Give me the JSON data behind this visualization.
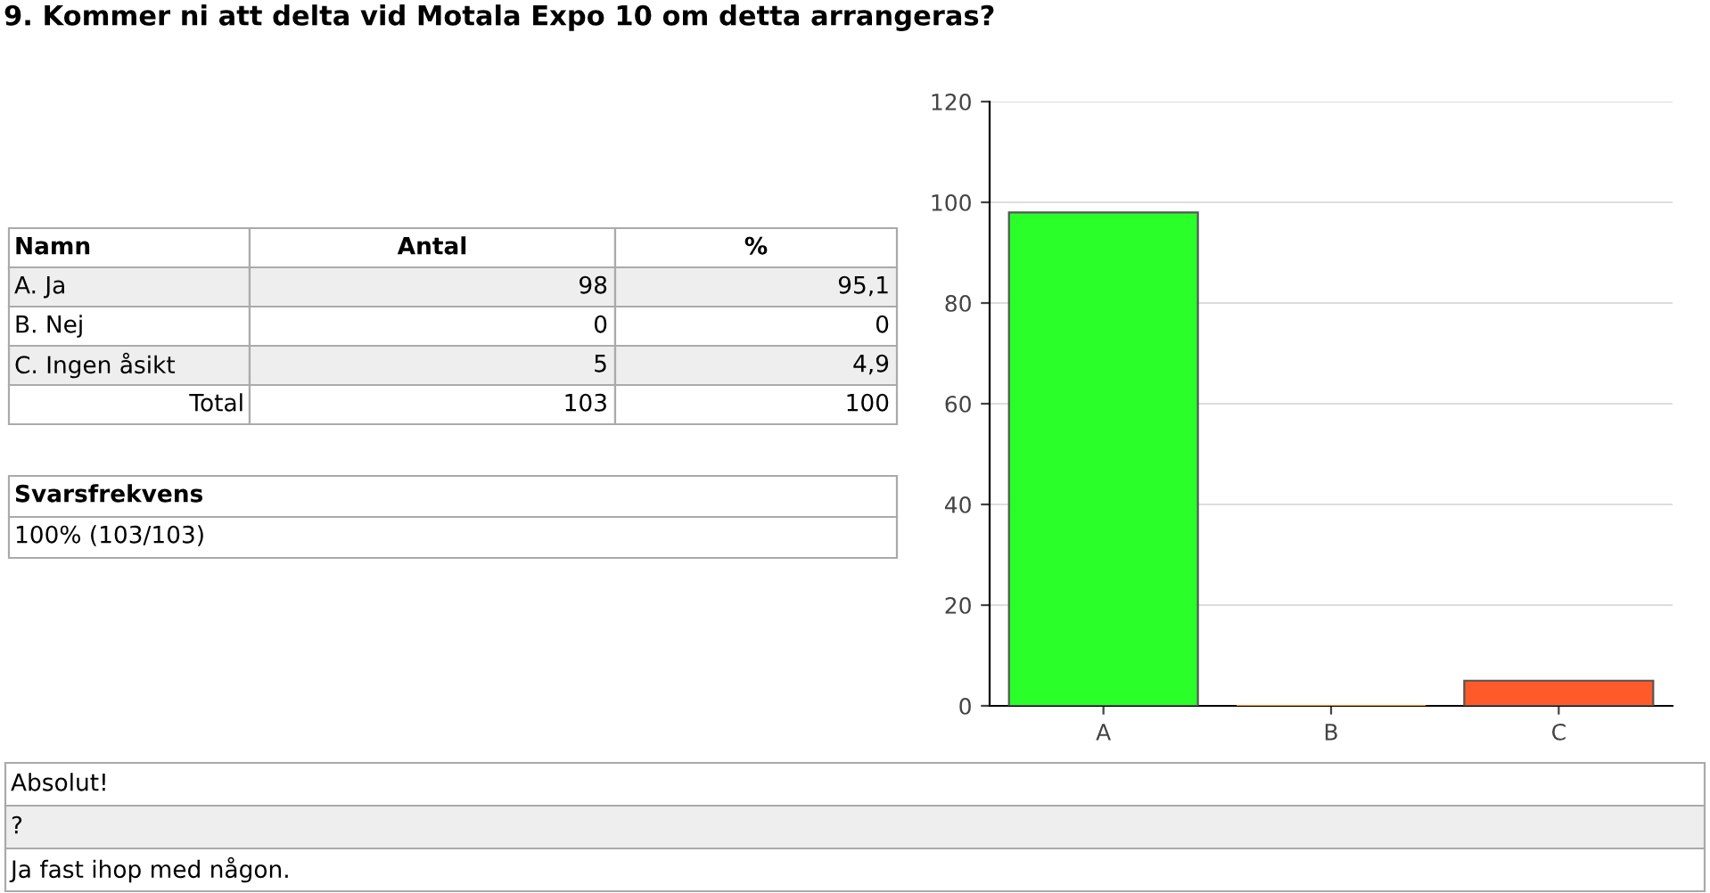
{
  "chart_data": {
    "type": "bar",
    "title": "9. Kommer ni att delta vid Motala Expo 10 om detta arrangeras?",
    "categories": [
      "A",
      "B",
      "C"
    ],
    "values": [
      98,
      0,
      5
    ],
    "colors": [
      "#2aff2a",
      "#ff9a2a",
      "#ff5a2a"
    ],
    "ylim": [
      0,
      120
    ],
    "yticks": [
      0,
      20,
      40,
      60,
      80,
      100,
      120
    ],
    "grid": "y",
    "annotations": [
      "Namn",
      "Antal",
      "%",
      "A. Ja",
      "98",
      "95,1",
      "B. Nej",
      "0",
      "0",
      "C. Ingen åsikt",
      "5",
      "4,9",
      "Total",
      "103",
      "100",
      "Svarsfrekvens",
      "100% (103/103)",
      "Absolut!",
      "?",
      "Ja fast ihop med någon."
    ]
  }
}
